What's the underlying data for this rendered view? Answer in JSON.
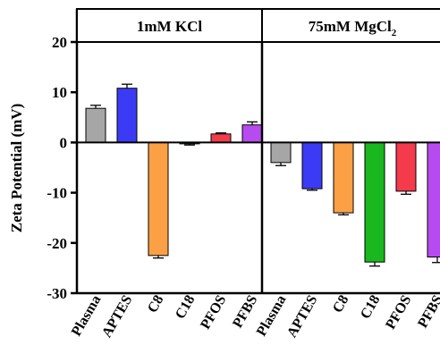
{
  "chart_data": {
    "type": "bar",
    "ylabel": "Zeta Potential (mV)",
    "ylim": [
      -30,
      20
    ],
    "yticks": [
      20,
      10,
      0,
      -10,
      -20,
      -30
    ],
    "grid": false,
    "legend": "none",
    "categories": [
      "Plasma",
      "APTES",
      "C8",
      "C18",
      "PFOS",
      "PFBS"
    ],
    "colors": [
      "#a6a6a6",
      "#3b3bf5",
      "#fba044",
      "#19b81e",
      "#f43b4c",
      "#b84bf0"
    ],
    "panels": [
      {
        "title": "1mM KCl",
        "values": [
          6.8,
          10.8,
          -22.5,
          -0.2,
          1.7,
          3.5
        ],
        "errors": [
          0.6,
          0.8,
          0.5,
          0.3,
          0.2,
          0.6
        ]
      },
      {
        "title": "75mM MgCl",
        "title_sub": "2",
        "values": [
          -4.0,
          -9.2,
          -14.0,
          -23.8,
          -9.7,
          -22.8
        ],
        "errors": [
          0.6,
          0.3,
          0.4,
          0.8,
          0.6,
          1.1
        ]
      }
    ]
  }
}
